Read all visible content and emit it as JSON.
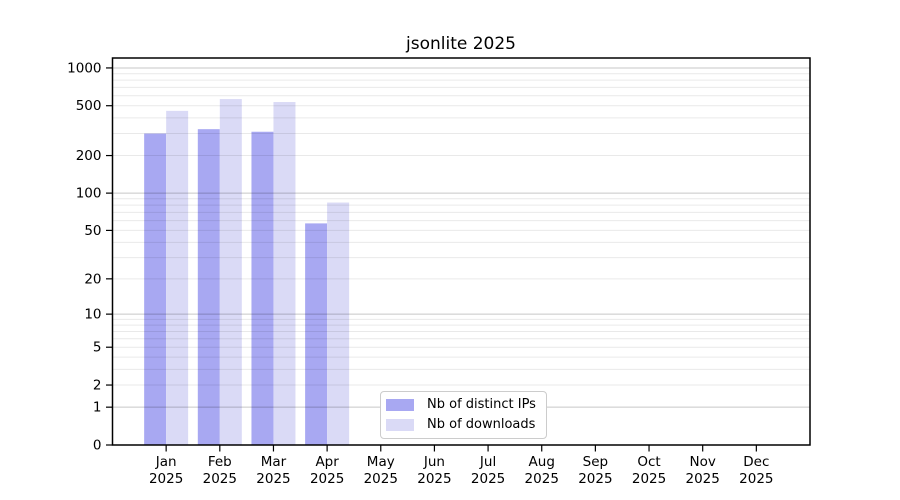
{
  "chart_data": {
    "type": "bar",
    "title": "jsonlite 2025",
    "xlabel": "",
    "ylabel": "",
    "yscale": "log1p",
    "ylim": [
      0,
      1200
    ],
    "y_ticks": [
      0,
      1,
      2,
      5,
      10,
      20,
      50,
      100,
      200,
      500,
      1000
    ],
    "grid": {
      "orientation": "horizontal",
      "major": [
        1,
        10,
        100,
        1000
      ],
      "minor_multiples_per_decade": [
        2,
        3,
        4,
        5,
        6,
        7,
        8,
        9
      ],
      "minor_decades": [
        1,
        10,
        100
      ]
    },
    "categories": [
      "Jan",
      "Feb",
      "Mar",
      "Apr",
      "May",
      "Jun",
      "Jul",
      "Aug",
      "Sep",
      "Oct",
      "Nov",
      "Dec"
    ],
    "x_year_label": "2025",
    "series": [
      {
        "name": "Nb of distinct IPs",
        "color": "#a8a8f2",
        "values": [
          300,
          325,
          310,
          57,
          null,
          null,
          null,
          null,
          null,
          null,
          null,
          null
        ]
      },
      {
        "name": "Nb of downloads",
        "color": "#dadaf6",
        "values": [
          455,
          565,
          535,
          84,
          null,
          null,
          null,
          null,
          null,
          null,
          null,
          null
        ]
      }
    ],
    "legend_position": "bottom-center-inside"
  },
  "colors": {
    "distinct_ips_bar": "#a8a8f2",
    "downloads_bar": "#dadaf6",
    "spine": "#000000",
    "grid_minor_over_white": "#e9e9e9",
    "grid_major_over_white": "#c8c8c8",
    "background": "#ffffff",
    "legend_border": "#cccccc"
  }
}
